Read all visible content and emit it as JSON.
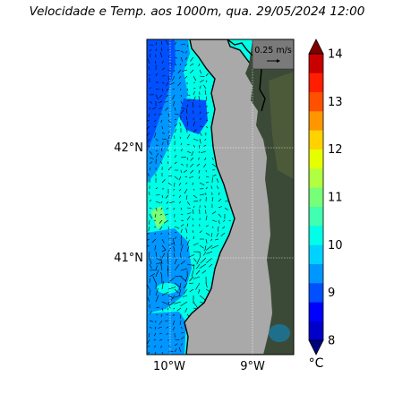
{
  "header": {
    "title": "Velocidade e Temp. aos 1000m, qua. 29/05/2024 12:00"
  },
  "map": {
    "lat_labels": [
      "42°N",
      "41°N"
    ],
    "lon_labels": [
      "10°W",
      "9°W"
    ],
    "reference_vector_label": "0.25 m/s",
    "colors": {
      "land": "#a9a9a9",
      "coast": "#000000",
      "grid": "#ffffff",
      "satellite_land": "#3b4a37"
    }
  },
  "colorbar": {
    "labels": [
      "8",
      "9",
      "10",
      "11",
      "12",
      "13",
      "14"
    ],
    "unit": "°C",
    "bands": [
      "#000080",
      "#0000c8",
      "#0000ff",
      "#0050ff",
      "#0096ff",
      "#00d2ff",
      "#00ffe6",
      "#40ffb0",
      "#78ff78",
      "#b0ff40",
      "#e6ff00",
      "#ffd200",
      "#ff9600",
      "#ff5000",
      "#ff1e00",
      "#c80000",
      "#800000"
    ]
  }
}
